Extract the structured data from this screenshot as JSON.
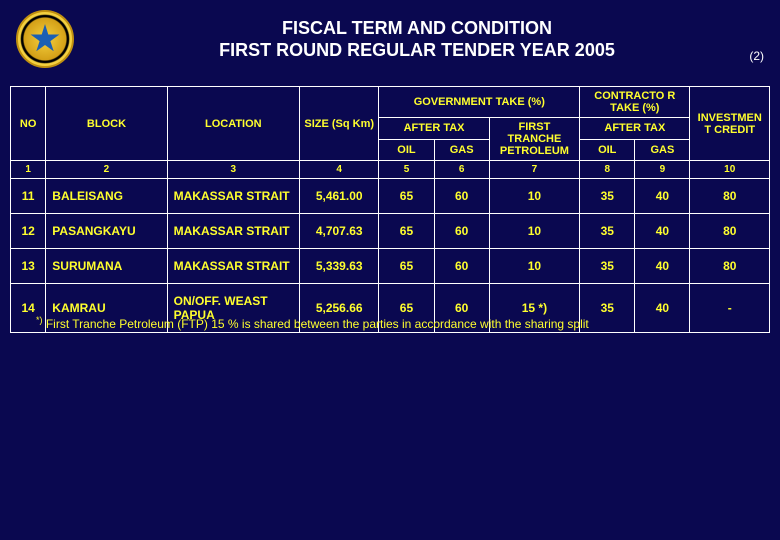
{
  "title": {
    "line1": "FISCAL TERM AND CONDITION",
    "line2": "FIRST ROUND REGULAR  TENDER YEAR 2005"
  },
  "page_number": "(2)",
  "header": {
    "no": "NO",
    "block": "BLOCK",
    "location": "LOCATION",
    "size": "SIZE (Sq Km)",
    "gov_take": "GOVERNMENT TAKE (%)",
    "contractor_take": "CONTRACTO R TAKE (%)",
    "investment": "INVESTMEN T CREDIT",
    "after_tax": "AFTER TAX",
    "ftp": "FIRST TRANCHE PETROLEUM",
    "oil": "OIL",
    "gas": "GAS"
  },
  "subheader": {
    "c1": "1",
    "c2": "2",
    "c3": "3",
    "c4": "4",
    "c5": "5",
    "c6": "6",
    "c7": "7",
    "c8": "8",
    "c9": "9",
    "c10": "10"
  },
  "rows": [
    {
      "no": "11",
      "block": "BALEISANG",
      "location": "MAKASSAR STRAIT",
      "size": "5,461.00",
      "g_oil": "65",
      "g_gas": "60",
      "ftp": "10",
      "c_oil": "35",
      "c_gas": "40",
      "inv": "80"
    },
    {
      "no": "12",
      "block": "PASANGKAYU",
      "location": "MAKASSAR STRAIT",
      "size": "4,707.63",
      "g_oil": "65",
      "g_gas": "60",
      "ftp": "10",
      "c_oil": "35",
      "c_gas": "40",
      "inv": "80"
    },
    {
      "no": "13",
      "block": "SURUMANA",
      "location": "MAKASSAR STRAIT",
      "size": "5,339.63",
      "g_oil": "65",
      "g_gas": "60",
      "ftp": "10",
      "c_oil": "35",
      "c_gas": "40",
      "inv": "80"
    },
    {
      "no": "14",
      "block": "KAMRAU",
      "location": "ON/OFF. WEAST PAPUA",
      "size": "5,256.66",
      "g_oil": "65",
      "g_gas": "60",
      "ftp": "15 *)",
      "c_oil": "35",
      "c_gas": "40",
      "inv": "-"
    }
  ],
  "footnote_mark": "*)",
  "footnote": "First Tranche Petroleum (FTP) 15 % is shared between the parties in accordance with the sharing split",
  "colors": {
    "background": "#0a0850",
    "text": "#ffff2e",
    "border": "#ffffff",
    "title": "#ffffff"
  }
}
